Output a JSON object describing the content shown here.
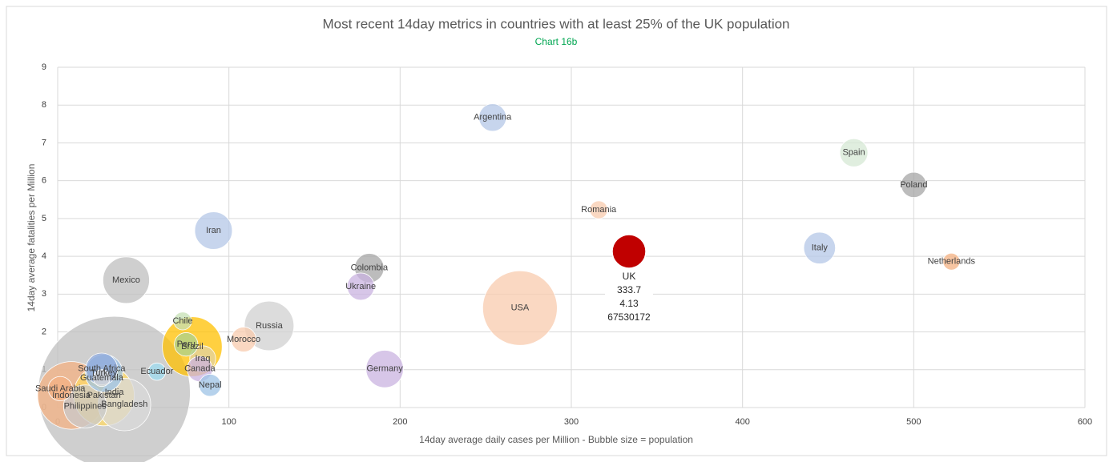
{
  "chart_data": {
    "type": "bubble",
    "title": "Most recent 14day metrics in countries with at least 25% of the UK population",
    "subtitle": "Chart 16b",
    "x_label": "14day average daily cases per Million - Bubble size = population",
    "y_label": "14day average fatalities per Million",
    "xlim": [
      0,
      600
    ],
    "xticks": [
      0,
      100,
      200,
      300,
      400,
      500,
      600
    ],
    "ylim": [
      0,
      9
    ],
    "yticks": [
      0,
      1,
      2,
      3,
      4,
      5,
      6,
      7,
      8,
      9
    ],
    "grid": true,
    "points": [
      {
        "label": "India",
        "x": 33,
        "y": 0.4,
        "size": 1380000000,
        "color": "#bfbfbf"
      },
      {
        "label": "USA",
        "x": 270,
        "y": 2.63,
        "size": 331000000,
        "color": "#f8cbad"
      },
      {
        "label": "Indonesia",
        "x": 8,
        "y": 0.32,
        "size": 273000000,
        "color": "#f4b183"
      },
      {
        "label": "Pakistan",
        "x": 27,
        "y": 0.32,
        "size": 220000000,
        "color": "#ffd966"
      },
      {
        "label": "Brazil",
        "x": 78.6,
        "y": 1.61,
        "size": 213000000,
        "color": "#ffc000"
      },
      {
        "label": "Bangladesh",
        "x": 39,
        "y": 0.08,
        "size": 164000000,
        "color": "#d9d9d9"
      },
      {
        "label": "Russia",
        "x": 123.5,
        "y": 2.16,
        "size": 146000000,
        "color": "#d0d0d0"
      },
      {
        "label": "Mexico",
        "x": 40,
        "y": 3.37,
        "size": 129000000,
        "color": "#bfbfbf"
      },
      {
        "label": "Philippines",
        "x": 16,
        "y": 0.03,
        "size": 110000000,
        "color": "#c9c9c9"
      },
      {
        "label": "Iran",
        "x": 91,
        "y": 4.68,
        "size": 84000000,
        "color": "#b4c7e7"
      },
      {
        "label": "Turkey",
        "x": 27,
        "y": 0.91,
        "size": 84000000,
        "color": "#9dc3e6"
      },
      {
        "label": "Germany",
        "x": 191,
        "y": 1.02,
        "size": 83000000,
        "color": "#c9b3e0"
      },
      {
        "label": "Italy",
        "x": 445,
        "y": 4.22,
        "size": 60000000,
        "color": "#b4c7e7"
      },
      {
        "label": "South Africa",
        "x": 25.7,
        "y": 1.02,
        "size": 60000000,
        "color": "#8faadc"
      },
      {
        "label": "Colombia",
        "x": 182,
        "y": 3.69,
        "size": 51000000,
        "color": "#a6a6a6"
      },
      {
        "label": "Spain",
        "x": 465,
        "y": 6.74,
        "size": 47000000,
        "color": "#d5e8d4"
      },
      {
        "label": "Argentina",
        "x": 254,
        "y": 7.67,
        "size": 45000000,
        "color": "#b4c7e7"
      },
      {
        "label": "Ukraine",
        "x": 177,
        "y": 3.2,
        "size": 44000000,
        "color": "#c9b3e0"
      },
      {
        "label": "Iraq",
        "x": 84.7,
        "y": 1.29,
        "size": 40000000,
        "color": "#e2d3a3"
      },
      {
        "label": "Poland",
        "x": 500,
        "y": 5.89,
        "size": 38000000,
        "color": "#a6a6a6"
      },
      {
        "label": "Canada",
        "x": 83,
        "y": 1.02,
        "size": 38000000,
        "color": "#c9b3e0"
      },
      {
        "label": "Morocco",
        "x": 108.6,
        "y": 1.8,
        "size": 37000000,
        "color": "#f8cbad"
      },
      {
        "label": "Saudi Arabia",
        "x": 1.5,
        "y": 0.5,
        "size": 35000000,
        "color": "#f4b183"
      },
      {
        "label": "Peru",
        "x": 75,
        "y": 1.67,
        "size": 33000000,
        "color": "#a9d18e"
      },
      {
        "label": "Nepal",
        "x": 89,
        "y": 0.59,
        "size": 29000000,
        "color": "#9dc3e6"
      },
      {
        "label": "Chile",
        "x": 73,
        "y": 2.29,
        "size": 19000000,
        "color": "#c5e0b4"
      },
      {
        "label": "Romania",
        "x": 316,
        "y": 5.23,
        "size": 19000000,
        "color": "#f8cbad"
      },
      {
        "label": "Ecuador",
        "x": 58,
        "y": 0.95,
        "size": 18000000,
        "color": "#9ddcf0"
      },
      {
        "label": "Guatemala",
        "x": 25.7,
        "y": 0.78,
        "size": 17000000,
        "color": "#d9d9d9"
      },
      {
        "label": "Netherlands",
        "x": 522,
        "y": 3.86,
        "size": 17000000,
        "color": "#f4b183"
      }
    ],
    "highlight": {
      "label": "UK",
      "x": 333.7,
      "y": 4.13,
      "size": 67530172,
      "color": "#c00000"
    }
  }
}
